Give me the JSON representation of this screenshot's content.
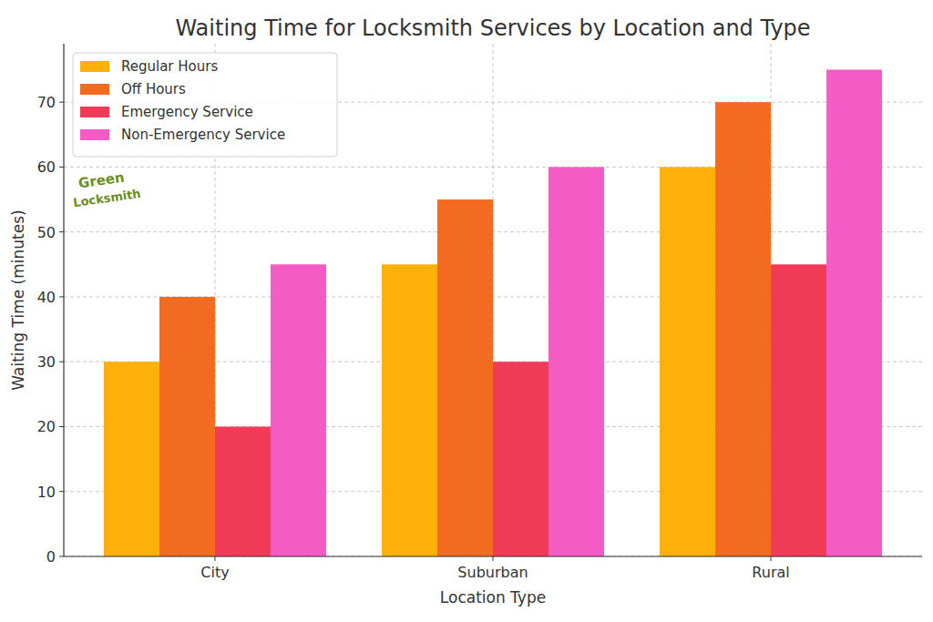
{
  "chart_data": {
    "type": "bar",
    "title": "Waiting Time for Locksmith Services by Location and Type",
    "x_label": "Location Type",
    "y_label": "Waiting Time (minutes)",
    "annotations": [
      "Green",
      "Locksmith"
    ],
    "categories": [
      "City",
      "Suburban",
      "Rural"
    ],
    "series": [
      {
        "name": "Regular Hours",
        "color": "#fdaf0a",
        "values": [
          30,
          45,
          60
        ]
      },
      {
        "name": "Off Hours",
        "color": "#f26b21",
        "values": [
          40,
          55,
          70
        ]
      },
      {
        "name": "Emergency Service",
        "color": "#f03a58",
        "values": [
          20,
          30,
          45
        ]
      },
      {
        "name": "Non-Emergency Service",
        "color": "#f45bc4",
        "values": [
          45,
          60,
          75
        ]
      }
    ],
    "ylim": [
      0,
      79
    ],
    "yticks": [
      0,
      10,
      20,
      30,
      40,
      50,
      60,
      70
    ],
    "grid": true,
    "legend": "upper left"
  }
}
